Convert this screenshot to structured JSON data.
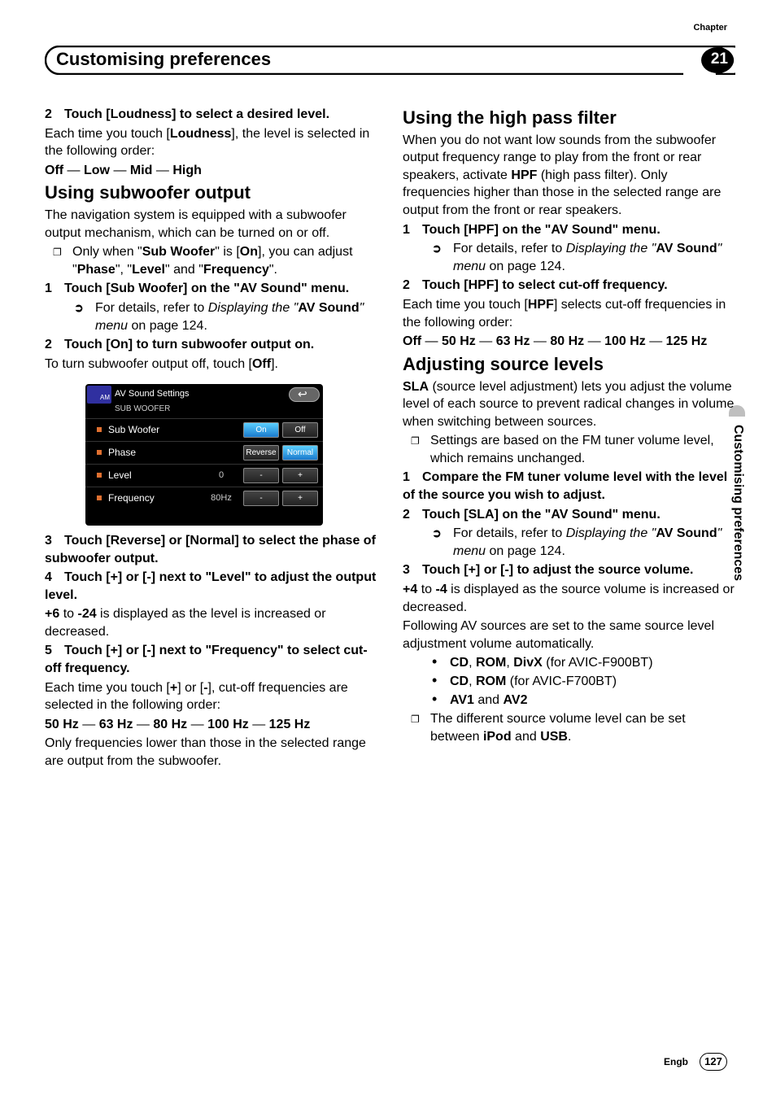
{
  "header": {
    "chapter_label": "Chapter",
    "title": "Customising preferences",
    "chapter_number": "21"
  },
  "side_tab": "Customising preferences",
  "footer": {
    "lang": "Engb",
    "page": "127"
  },
  "colors": {
    "accent_orange": "#e07030",
    "blue_btn_top": "#5bd0ff",
    "blue_btn_bot": "#1a7acc"
  },
  "screenshot": {
    "title": "AV Sound Settings",
    "breadcrumb": "SUB WOOFER",
    "rows": [
      {
        "label": "Sub Woofer",
        "value": "",
        "btns": [
          "On",
          "Off"
        ],
        "active": 0
      },
      {
        "label": "Phase",
        "value": "",
        "btns": [
          "Reverse",
          "Normal"
        ],
        "active": 1
      },
      {
        "label": "Level",
        "value": "0",
        "btns": [
          "-",
          "+"
        ],
        "active": -1
      },
      {
        "label": "Frequency",
        "value": "80Hz",
        "btns": [
          "-",
          "+"
        ],
        "active": -1
      }
    ]
  },
  "left": {
    "step2a": "Touch [Loudness] to select a desired level.",
    "p1a": "Each time you touch [",
    "p1b": "], the level is selected in the following order:",
    "seq1": [
      "Off",
      "Low",
      "Mid",
      "High"
    ],
    "h1": "Using subwoofer output",
    "p2": "The navigation system is equipped with a subwoofer output mechanism, which can be turned on or off.",
    "note1a": "Only when \"",
    "note1b": "\" is [",
    "note1c": "], you can adjust \"",
    "note1d": "\", \"",
    "note1e": "\" and \"",
    "note1f": "\".",
    "sw": "Sub Woofer",
    "on": "On",
    "phase": "Phase",
    "level": "Level",
    "freq": "Frequency",
    "step1": "Touch [Sub Woofer] on the \"AV Sound\" menu.",
    "arr1a": "For details, refer to ",
    "arr1it": "Displaying the \"",
    "arr1b": "\" menu",
    "arr1c": " on page 124.",
    "avsound": "AV Sound",
    "step2b": "Touch [On] to turn subwoofer output on.",
    "p3a": "To turn subwoofer output off, touch [",
    "p3b": "].",
    "off": "Off",
    "step3": "Touch [Reverse] or [Normal] to select the phase of subwoofer output.",
    "step4": "Touch [+] or [-] next to \"Level\" to adjust the output level.",
    "p4a": "+6",
    "p4b": " to ",
    "p4c": "-24",
    "p4d": " is displayed as the level is increased or decreased.",
    "step5": "Touch [+] or [-] next to \"Frequency\" to select cut-off frequency.",
    "p5a": "Each time you touch [",
    "p5b": "] or [",
    "p5c": "], cut-off frequencies are selected in the following order:",
    "plus": "+",
    "minus": "-",
    "seq2": [
      "50 Hz",
      "63 Hz",
      "80 Hz",
      "100 Hz",
      "125 Hz"
    ],
    "p6": "Only frequencies lower than those in the selected range are output from the subwoofer.",
    "loudness": "Loudness"
  },
  "right": {
    "h1": "Using the high pass filter",
    "p1a": "When you do not want low sounds from the subwoofer output frequency range to play from the front or rear speakers, activate ",
    "p1b": " (high pass filter). Only frequencies higher than those in the selected range are output from the front or rear speakers.",
    "hpf": "HPF",
    "step1": "Touch [HPF] on the \"AV Sound\" menu.",
    "arr1a": "For details, refer to ",
    "arr1it": "Displaying the \"",
    "arr1b": "\" menu",
    "arr1c": " on page 124.",
    "avsound": "AV Sound",
    "step2": "Touch [HPF] to select cut-off frequency.",
    "p2a": "Each time you touch [",
    "p2b": "] selects cut-off frequencies in the following order:",
    "seq": [
      "Off",
      "50 Hz",
      "63 Hz",
      "80 Hz",
      "100 Hz",
      "125 Hz"
    ],
    "h2": "Adjusting source levels",
    "p3a": "SLA",
    "p3b": " (source level adjustment) lets you adjust the volume level of each source to prevent radical changes in volume when switching between sources.",
    "note1": "Settings are based on the FM tuner volume level, which remains unchanged.",
    "step1b": "Compare the FM tuner volume level with the level of the source you wish to adjust.",
    "step2b": "Touch [SLA] on the \"AV Sound\" menu.",
    "step3": "Touch [+] or [-] to adjust the source volume.",
    "p4a": "+4",
    "p4b": " to ",
    "p4c": "-4",
    "p4d": " is displayed as the source volume is increased or decreased.",
    "p5": "Following AV sources are set to the same source level adjustment volume automatically.",
    "b1": [
      "CD",
      "ROM",
      "DivX"
    ],
    "b1s": " (for AVIC-F900BT)",
    "b2": [
      "CD",
      "ROM"
    ],
    "b2s": " (for AVIC-F700BT)",
    "b3": [
      "AV1",
      "AV2"
    ],
    "b3j": " and ",
    "note2a": "The different source volume level can be set between ",
    "note2b": " and ",
    "note2c": ".",
    "ipod": "iPod",
    "usb": "USB"
  }
}
